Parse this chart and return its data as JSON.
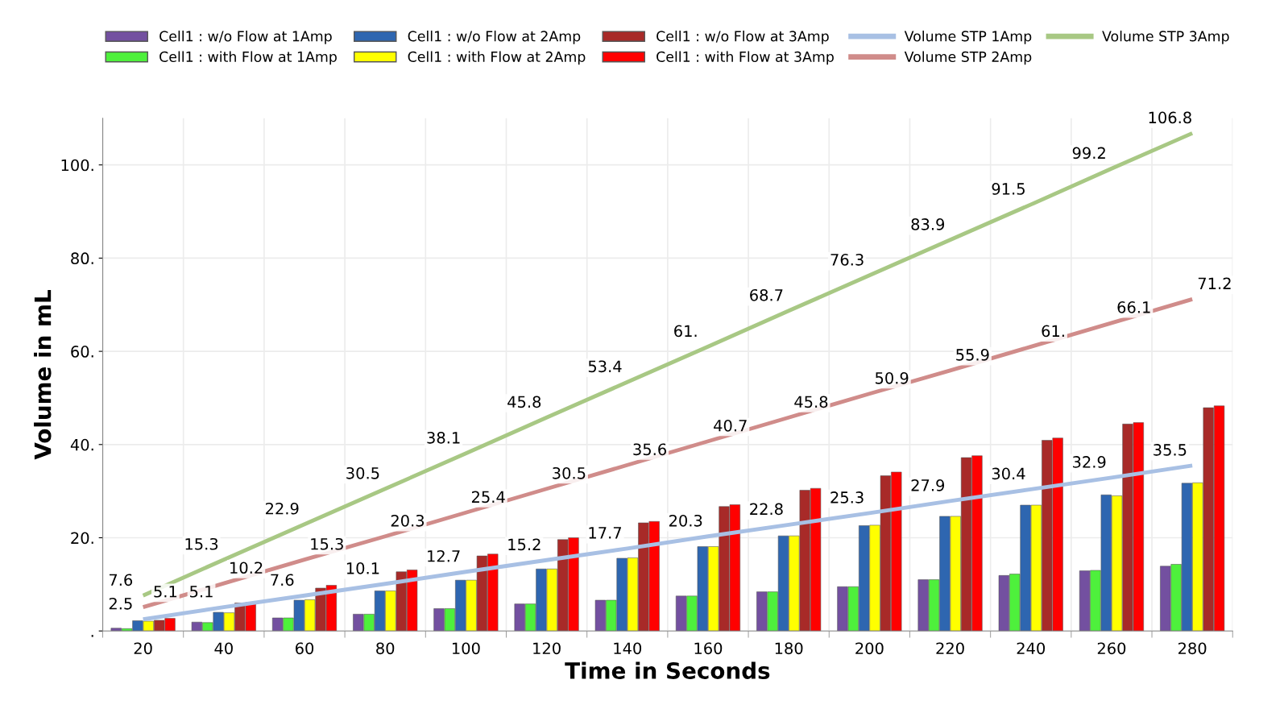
{
  "chart_data": {
    "type": "bar",
    "xlabel": "Time in Seconds",
    "ylabel": "Volume in mL",
    "categories": [
      "20",
      "40",
      "60",
      "80",
      "100",
      "120",
      "140",
      "160",
      "180",
      "200",
      "220",
      "240",
      "260",
      "280"
    ],
    "series": [
      {
        "name": "Cell1 : w/o Flow at 1Amp",
        "color": "#7350a0",
        "values": [
          0.6,
          1.9,
          2.8,
          3.6,
          4.8,
          5.8,
          6.6,
          7.5,
          8.4,
          9.5,
          11.0,
          11.9,
          12.9,
          13.9
        ]
      },
      {
        "name": "Cell1 : with Flow at 1Amp",
        "color": "#4ef03c",
        "values": [
          0.5,
          1.8,
          2.8,
          3.6,
          4.8,
          5.8,
          6.6,
          7.5,
          8.4,
          9.5,
          11.0,
          12.2,
          13.0,
          14.3
        ]
      },
      {
        "name": "Cell1 : w/o Flow at 2Amp",
        "color": "#2e66b0",
        "values": [
          2.2,
          4.0,
          6.6,
          8.6,
          10.9,
          13.3,
          15.6,
          18.1,
          20.4,
          22.6,
          24.6,
          27.0,
          29.2,
          31.7
        ]
      },
      {
        "name": "Cell1 : with Flow at 2Amp",
        "color": "#ffff00",
        "values": [
          2.1,
          3.9,
          6.7,
          8.6,
          10.9,
          13.3,
          15.7,
          18.1,
          20.4,
          22.7,
          24.6,
          27.0,
          29.0,
          31.8
        ]
      },
      {
        "name": "Cell1 : w/o Flow at 3Amp",
        "color": "#a82a28",
        "values": [
          2.3,
          6.0,
          9.2,
          12.7,
          16.1,
          19.6,
          23.2,
          26.7,
          30.2,
          33.3,
          37.2,
          40.9,
          44.4,
          47.9
        ]
      },
      {
        "name": "Cell1 : with Flow at 3Amp",
        "color": "#ff0000",
        "values": [
          2.7,
          6.1,
          9.8,
          13.1,
          16.5,
          20.0,
          23.5,
          27.1,
          30.6,
          34.1,
          37.6,
          41.4,
          44.7,
          48.3
        ]
      },
      {
        "name": "Volume STP 1Amp",
        "type": "line",
        "color": "#a8c0e4",
        "values": [
          2.5,
          5.1,
          7.6,
          10.1,
          12.7,
          15.2,
          17.7,
          20.3,
          22.8,
          25.3,
          27.9,
          30.4,
          32.9,
          35.5
        ],
        "value_labels": [
          "2.5",
          "5.1",
          "7.6",
          "10.1",
          "12.7",
          "15.2",
          "17.7",
          "20.3",
          "22.8",
          "25.3",
          "27.9",
          "30.4",
          "32.9",
          "35.5"
        ]
      },
      {
        "name": "Volume STP 2Amp",
        "type": "line",
        "color": "#d08c8a",
        "values": [
          5.1,
          10.2,
          15.3,
          20.3,
          25.4,
          30.5,
          35.6,
          40.7,
          45.8,
          50.9,
          55.9,
          61,
          66.1,
          71.2
        ],
        "value_labels": [
          "5.1",
          "10.2",
          "15.3",
          "20.3",
          "25.4",
          "30.5",
          "35.6",
          "40.7",
          "45.8",
          "50.9",
          "55.9",
          "61.",
          "66.1",
          "71.2"
        ]
      },
      {
        "name": "Volume STP 3Amp",
        "type": "line",
        "color": "#a8c884",
        "values": [
          7.6,
          15.3,
          22.9,
          30.5,
          38.1,
          45.8,
          53.4,
          61,
          68.7,
          76.3,
          83.9,
          91.5,
          99.2,
          106.8
        ],
        "value_labels": [
          "7.6",
          "15.3",
          "22.9",
          "30.5",
          "38.1",
          "45.8",
          "53.4",
          "61.",
          "68.7",
          "76.3",
          "83.9",
          "91.5",
          "99.2",
          "106.8"
        ]
      }
    ],
    "ylim": [
      0,
      110
    ],
    "yticks": [
      {
        "value": 0,
        "label": "."
      },
      {
        "value": 20,
        "label": "20."
      },
      {
        "value": 40,
        "label": "40."
      },
      {
        "value": 60,
        "label": "60."
      },
      {
        "value": 80,
        "label": "80."
      },
      {
        "value": 100,
        "label": "100."
      }
    ],
    "grid": true,
    "legend": "top"
  }
}
